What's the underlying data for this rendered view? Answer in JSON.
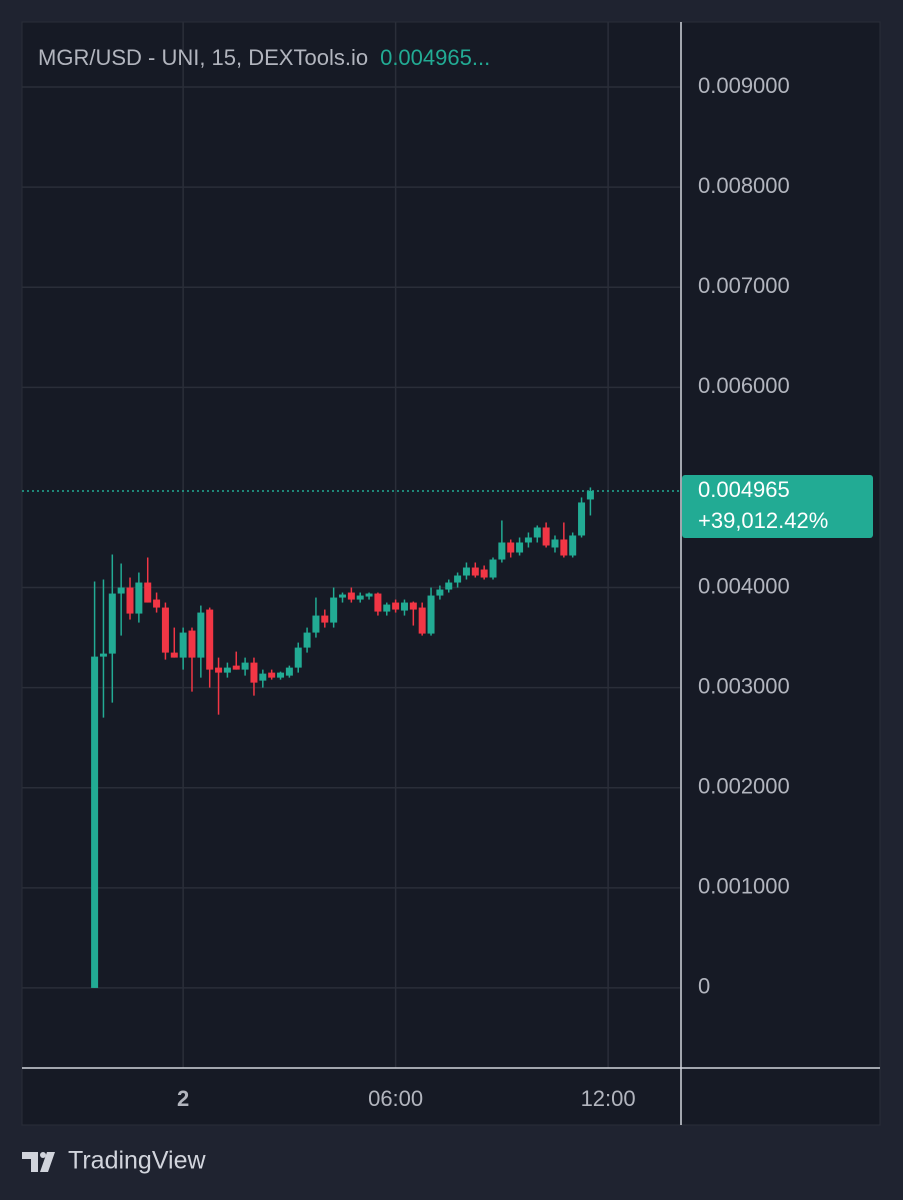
{
  "chart_data": {
    "type": "candlestick",
    "title": "MGR/USD - UNI, 15, DEXTools.io",
    "header_value": "0.004965...",
    "brand": "TradingView",
    "up_color": "#22ab94",
    "down_color": "#f23645",
    "grid": true,
    "xlim": [
      -4.55,
      14.03
    ],
    "xticks": [
      {
        "value": 0,
        "label": "2"
      },
      {
        "value": 6,
        "label": "06:00"
      },
      {
        "value": 12,
        "label": "12:00"
      }
    ],
    "ylim": [
      -0.0008,
      0.00965
    ],
    "yticks": [
      0,
      {
        "value": 0.001,
        "label": "0.001000"
      },
      {
        "value": 0.002,
        "label": "0.002000"
      },
      {
        "value": 0.003,
        "label": "0.003000"
      },
      {
        "value": 0.004,
        "label": "0.004000"
      },
      {
        "value": 0.006,
        "label": "0.006000"
      },
      {
        "value": 0.007,
        "label": "0.007000"
      },
      {
        "value": 0.008,
        "label": "0.008000"
      },
      {
        "value": 0.009,
        "label": "0.009000"
      }
    ],
    "last_price": 0.004965,
    "change": "+39,012.42%",
    "x": [
      -2.5,
      -2.25,
      -2,
      -1.75,
      -1.5,
      -1.25,
      -1,
      -0.75,
      -0.5,
      -0.25,
      0,
      0.25,
      0.5,
      0.75,
      1,
      1.25,
      1.5,
      1.75,
      2,
      2.25,
      2.5,
      2.75,
      3,
      3.25,
      3.5,
      3.75,
      4,
      4.25,
      4.5,
      4.75,
      5,
      5.25,
      5.5,
      5.75,
      6,
      6.25,
      6.5,
      6.75,
      7,
      7.25,
      7.5,
      7.75,
      8,
      8.25,
      8.5,
      8.75,
      9,
      9.25,
      9.5,
      9.75,
      10,
      10.25,
      10.5,
      10.75,
      11,
      11.25,
      11.5
    ],
    "open": [
      0,
      0.00331,
      0.00334,
      0.00394,
      0.004,
      0.00374,
      0.00405,
      0.00388,
      0.0038,
      0.00335,
      0.0033,
      0.00357,
      0.0033,
      0.00378,
      0.0032,
      0.00315,
      0.00322,
      0.00318,
      0.00325,
      0.00307,
      0.00315,
      0.0031,
      0.00312,
      0.0032,
      0.0034,
      0.00355,
      0.00372,
      0.00365,
      0.0039,
      0.00395,
      0.00388,
      0.00391,
      0.00394,
      0.00376,
      0.00385,
      0.00377,
      0.00385,
      0.0038,
      0.00354,
      0.00392,
      0.00398,
      0.00405,
      0.00412,
      0.0042,
      0.00418,
      0.0041,
      0.00428,
      0.00445,
      0.00435,
      0.00445,
      0.0045,
      0.0046,
      0.0044,
      0.00448,
      0.00432,
      0.00452,
      0.00488
    ],
    "high": [
      0.00406,
      0.00408,
      0.00433,
      0.00424,
      0.0041,
      0.00415,
      0.0043,
      0.00395,
      0.00385,
      0.0036,
      0.0036,
      0.0036,
      0.00382,
      0.0038,
      0.0033,
      0.00325,
      0.00336,
      0.0033,
      0.0033,
      0.00318,
      0.00318,
      0.00316,
      0.00322,
      0.00345,
      0.0036,
      0.0039,
      0.00378,
      0.004,
      0.00395,
      0.004,
      0.00395,
      0.00395,
      0.00395,
      0.00385,
      0.00388,
      0.00388,
      0.00386,
      0.00385,
      0.004,
      0.00402,
      0.00408,
      0.00415,
      0.00425,
      0.00425,
      0.00422,
      0.0043,
      0.00467,
      0.00448,
      0.0045,
      0.00455,
      0.00462,
      0.00465,
      0.00452,
      0.00465,
      0.00455,
      0.0049,
      0.005
    ],
    "low": [
      0,
      0.0027,
      0.00285,
      0.00352,
      0.00368,
      0.00365,
      0.00385,
      0.00375,
      0.00328,
      0.0033,
      0.00318,
      0.00296,
      0.0031,
      0.003,
      0.00273,
      0.0031,
      0.00318,
      0.00312,
      0.00292,
      0.003,
      0.00308,
      0.00308,
      0.0031,
      0.00315,
      0.00335,
      0.0035,
      0.0036,
      0.0036,
      0.00385,
      0.00385,
      0.00385,
      0.00388,
      0.00372,
      0.00372,
      0.00375,
      0.00372,
      0.00362,
      0.00352,
      0.00352,
      0.00388,
      0.00395,
      0.004,
      0.00408,
      0.0041,
      0.00408,
      0.00408,
      0.00425,
      0.0043,
      0.00432,
      0.0044,
      0.00445,
      0.0044,
      0.00435,
      0.0043,
      0.0043,
      0.0045,
      0.00472
    ],
    "close": [
      0.00331,
      0.00334,
      0.00394,
      0.004,
      0.00374,
      0.00405,
      0.00385,
      0.0038,
      0.00335,
      0.0033,
      0.00355,
      0.0033,
      0.00375,
      0.00318,
      0.00315,
      0.0032,
      0.00318,
      0.00325,
      0.00305,
      0.00314,
      0.0031,
      0.00315,
      0.0032,
      0.0034,
      0.00355,
      0.00372,
      0.00365,
      0.0039,
      0.00393,
      0.00388,
      0.00392,
      0.00394,
      0.00376,
      0.00383,
      0.00378,
      0.00385,
      0.00378,
      0.00354,
      0.00392,
      0.00398,
      0.00405,
      0.00412,
      0.0042,
      0.00412,
      0.0041,
      0.00428,
      0.00445,
      0.00435,
      0.00445,
      0.0045,
      0.0046,
      0.00442,
      0.00448,
      0.00432,
      0.00452,
      0.00485,
      0.004965
    ]
  }
}
